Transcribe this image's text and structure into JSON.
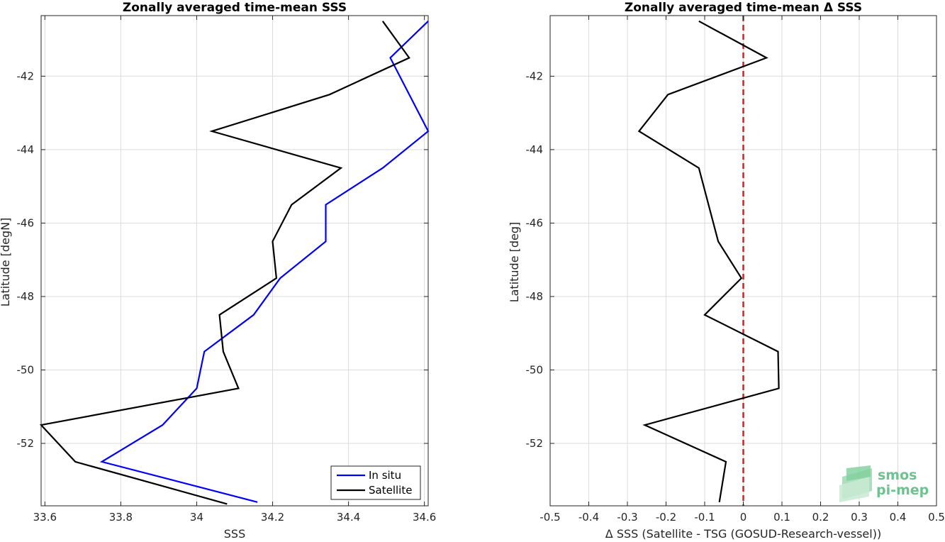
{
  "logo": {
    "line1": "smos",
    "line2": "pi-mep"
  },
  "chart_data": [
    {
      "type": "line",
      "title": "Zonally averaged time-mean SSS",
      "xlabel": "SSS",
      "ylabel": "Latitude [degN]",
      "xlim": [
        33.59,
        34.61
      ],
      "ylim": [
        -53.7,
        -40.35
      ],
      "xticks": [
        33.6,
        33.8,
        34.0,
        34.2,
        34.4,
        34.6
      ],
      "xtick_labels": [
        "33.6",
        "33.8",
        "34",
        "34.2",
        "34.4",
        "34.6"
      ],
      "yticks": [
        -42,
        -44,
        -46,
        -48,
        -50,
        -52
      ],
      "ytick_labels": [
        "-42",
        "-44",
        "-46",
        "-48",
        "-50",
        "-52"
      ],
      "grid": true,
      "legend": "bottom-right",
      "series": [
        {
          "name": "In situ",
          "color": "#0000ff",
          "x": [
            34.61,
            34.51,
            34.61,
            34.49,
            34.34,
            34.34,
            34.22,
            34.15,
            34.02,
            34.0,
            33.91,
            33.75,
            34.16
          ],
          "y": [
            -40.5,
            -41.5,
            -43.5,
            -44.5,
            -45.5,
            -46.5,
            -47.5,
            -48.5,
            -49.5,
            -50.5,
            -51.5,
            -52.5,
            -53.6
          ]
        },
        {
          "name": "Satellite",
          "color": "#000000",
          "x": [
            34.49,
            34.56,
            34.35,
            34.04,
            34.38,
            34.25,
            34.2,
            34.21,
            34.06,
            34.07,
            34.11,
            33.59,
            33.68,
            34.08
          ],
          "y": [
            -40.5,
            -41.5,
            -42.5,
            -43.5,
            -44.5,
            -45.5,
            -46.5,
            -47.5,
            -48.5,
            -49.5,
            -50.5,
            -51.5,
            -52.5,
            -53.65
          ]
        }
      ]
    },
    {
      "type": "line",
      "title": "Zonally averaged time-mean Δ SSS",
      "xlabel": "Δ SSS (Satellite - TSG (GOSUD-Research-vessel))",
      "ylabel": "Latitude [deg]",
      "xlim": [
        -0.5,
        0.5
      ],
      "ylim": [
        -53.7,
        -40.35
      ],
      "xticks": [
        -0.5,
        -0.4,
        -0.3,
        -0.2,
        -0.1,
        0,
        0.1,
        0.2,
        0.3,
        0.4,
        0.5
      ],
      "xtick_labels": [
        "-0.5",
        "-0.4",
        "-0.3",
        "-0.2",
        "-0.1",
        "0",
        "0.1",
        "0.2",
        "0.3",
        "0.4",
        "0.5"
      ],
      "yticks": [
        -42,
        -44,
        -46,
        -48,
        -50,
        -52
      ],
      "ytick_labels": [
        "-42",
        "-44",
        "-46",
        "-48",
        "-50",
        "-52"
      ],
      "grid": true,
      "reference_line": {
        "x": 0,
        "color": "#e31a1c",
        "style": "dashed"
      },
      "series": [
        {
          "color": "#000000",
          "x": [
            -0.115,
            0.06,
            -0.195,
            -0.27,
            -0.115,
            -0.065,
            -0.005,
            -0.1,
            0.09,
            0.092,
            -0.255,
            -0.045,
            -0.062
          ],
          "y": [
            -40.5,
            -41.5,
            -42.5,
            -43.5,
            -44.5,
            -46.5,
            -47.5,
            -48.5,
            -49.5,
            -50.5,
            -51.5,
            -52.5,
            -53.6
          ]
        }
      ]
    }
  ]
}
